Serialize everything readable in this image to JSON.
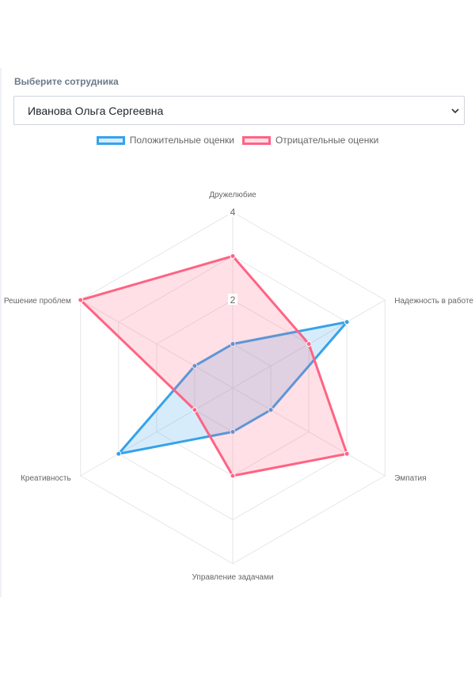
{
  "selector": {
    "label": "Выберите сотрудника",
    "value": "Иванова Ольга Сергеевна",
    "chevron_icon": "chevron-down-icon"
  },
  "chart_data": {
    "type": "radar",
    "axes": [
      "Дружелюбие",
      "Надежность в работе",
      "Эмпатия",
      "Управление задачами",
      "Креативность",
      "Решение проблем"
    ],
    "ticks": [
      "2",
      "4"
    ],
    "rmin": 0,
    "rmax": 4,
    "series": [
      {
        "name": "Положительные оценки",
        "values": [
          1,
          3,
          1,
          1,
          3,
          1
        ],
        "stroke": "#36a2eb",
        "fill": "rgba(54,162,235,0.2)"
      },
      {
        "name": "Отрицательные оценки",
        "values": [
          3,
          2,
          3,
          2,
          1,
          4
        ],
        "stroke": "#ff6384",
        "fill": "rgba(255,99,132,0.2)"
      }
    ]
  }
}
